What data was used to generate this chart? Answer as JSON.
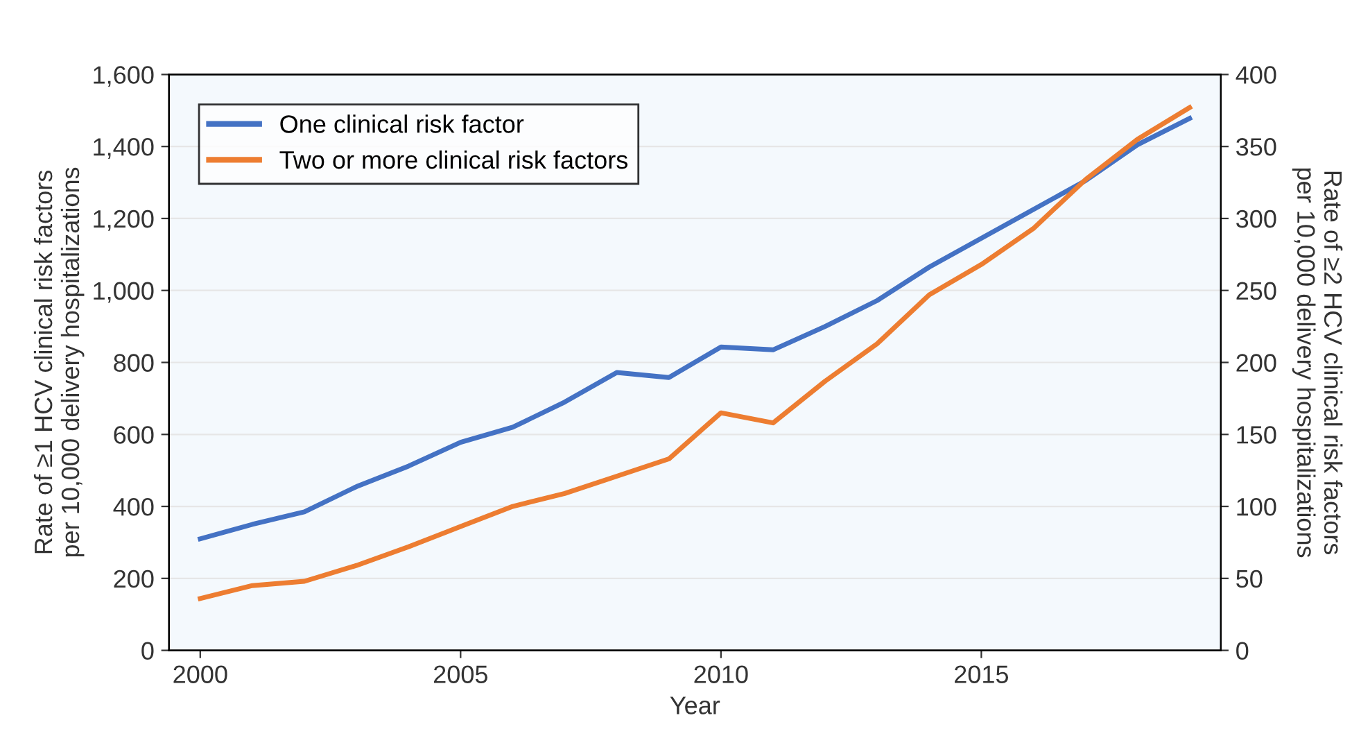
{
  "chart_data": {
    "type": "line",
    "xlabel": "Year",
    "ylabel": "Rate of ≥1 HCV clinical risk factors\nper 10,000 delivery hospitalizations",
    "y2label": "Rate of ≥2 HCV clinical risk factors\nper 10,000 delivery hospitalizations",
    "series": [
      {
        "name": "One clinical risk factor",
        "color": "#4472c4",
        "x": [
          2000,
          2001,
          2002,
          2003,
          2004,
          2005,
          2006,
          2007,
          2008,
          2009,
          2010,
          2011,
          2012,
          2013,
          2014,
          2015,
          2016,
          2017,
          2018,
          2019
        ],
        "values": [
          310,
          350,
          385,
          455,
          512,
          578,
          620,
          690,
          772,
          758,
          843,
          835,
          900,
          972,
          1065,
          1145,
          1225,
          1305,
          1405,
          1478
        ]
      },
      {
        "name": "Two or more clinical risk factors",
        "color": "#ed7d31",
        "axis": "y2",
        "x": [
          2000,
          2001,
          2002,
          2003,
          2004,
          2005,
          2006,
          2007,
          2008,
          2009,
          2010,
          2011,
          2012,
          2013,
          2014,
          2015,
          2016,
          2017,
          2018,
          2019
        ],
        "values": [
          36,
          45,
          48,
          59,
          72,
          86,
          100,
          109,
          121,
          133,
          165,
          158,
          187,
          213,
          247,
          268,
          293,
          327,
          355,
          377
        ]
      }
    ],
    "xlim": [
      1999.4,
      2019.6
    ],
    "xticks": [
      2000,
      2005,
      2010,
      2015
    ],
    "ylim": [
      0,
      1600
    ],
    "yticks": [
      0,
      200,
      400,
      600,
      800,
      {
        "value": 1000,
        "label": "1,000"
      },
      {
        "value": 1200,
        "label": "1,200"
      },
      {
        "value": 1400,
        "label": "1,400"
      },
      {
        "value": 1600,
        "label": "1,600"
      }
    ],
    "y2lim": [
      0,
      400
    ],
    "y2ticks": [
      0,
      50,
      100,
      150,
      200,
      250,
      300,
      350,
      400
    ],
    "grid": "y",
    "legend": "top left",
    "line_style": "solid",
    "marker": "none"
  }
}
